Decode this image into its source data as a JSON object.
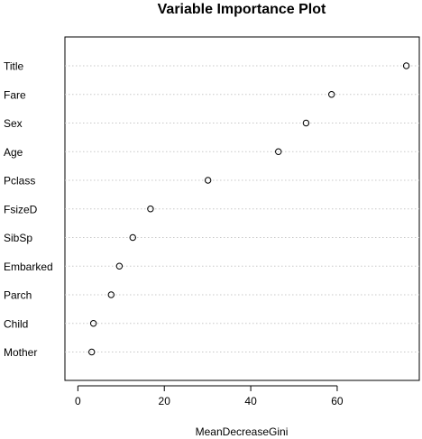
{
  "chart_data": {
    "type": "scatter",
    "title": "Variable Importance Plot",
    "xlabel": "MeanDecreaseGini",
    "ylabel": "",
    "xlim": [
      -3,
      79
    ],
    "x_ticks": [
      0,
      20,
      40,
      60
    ],
    "grid": "horizontal dotted",
    "categories": [
      "Title",
      "Fare",
      "Sex",
      "Age",
      "Pclass",
      "FsizeD",
      "SibSp",
      "Embarked",
      "Parch",
      "Child",
      "Mother"
    ],
    "values": [
      76.0,
      58.7,
      52.8,
      46.4,
      30.1,
      16.8,
      12.7,
      9.6,
      7.7,
      3.6,
      3.2
    ]
  }
}
